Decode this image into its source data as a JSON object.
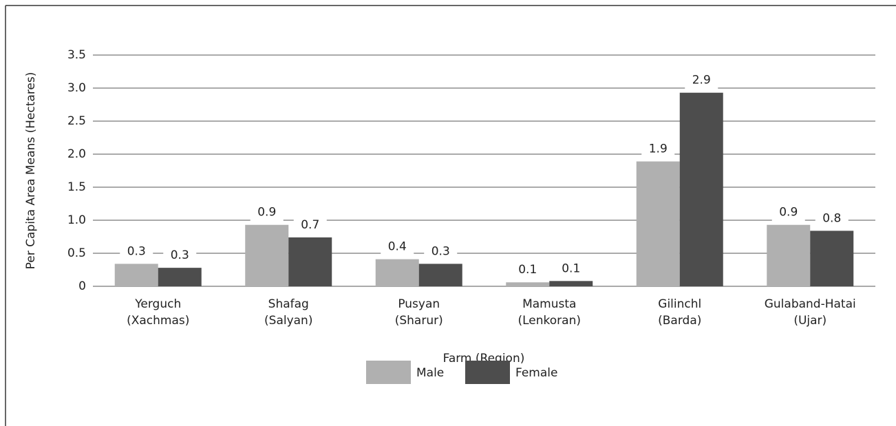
{
  "chart_data": {
    "type": "bar",
    "categories": [
      "Yerguch\n(Xachmas)",
      "Shafag\n(Salyan)",
      "Pusyan\n(Sharur)",
      "Mamusta\n(Lenkoran)",
      "Gilinchl\n(Barda)",
      "Gulaband-Hatai\n(Ujar)"
    ],
    "series": [
      {
        "name": "Male",
        "color": "#b0b0b0",
        "values": [
          0.34,
          0.93,
          0.41,
          0.06,
          1.89,
          0.93
        ],
        "value_labels": [
          "0.3",
          "0.9",
          "0.4",
          "0.1",
          "1.9",
          "0.9"
        ]
      },
      {
        "name": "Female",
        "color": "#4d4d4d",
        "values": [
          0.28,
          0.74,
          0.34,
          0.08,
          2.93,
          0.84
        ],
        "value_labels": [
          "0.3",
          "0.7",
          "0.3",
          "0.1",
          "2.9",
          "0.8"
        ]
      }
    ],
    "x_label": "Farm (Region)",
    "y_label": "Per Capita Area Means (Hectares)",
    "ylim": [
      0,
      3.5
    ],
    "yticks": [
      0,
      0.5,
      {
        "value": 1,
        "label": "1.0"
      },
      1.5,
      {
        "value": 2,
        "label": "2.0"
      },
      2.5,
      {
        "value": 3,
        "label": "3.0"
      },
      3.5
    ],
    "grid": true,
    "legend": "bottom"
  }
}
